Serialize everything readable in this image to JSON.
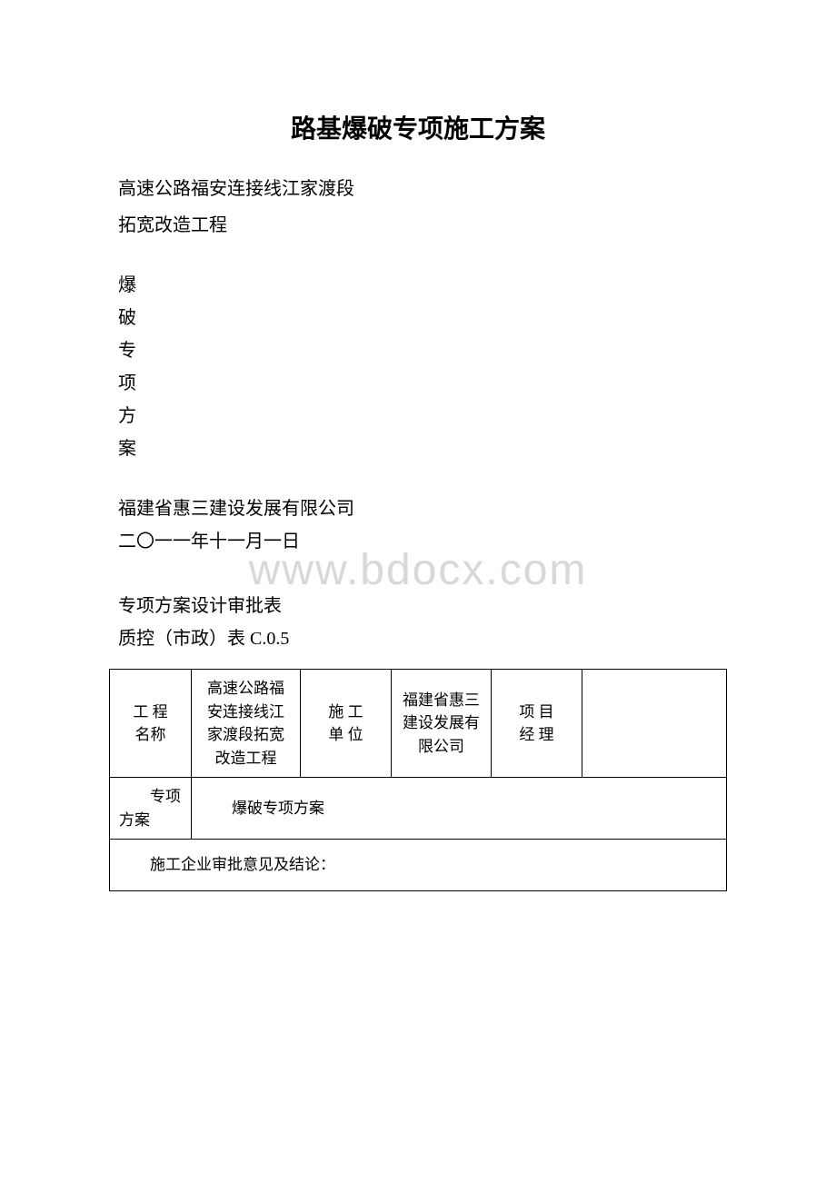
{
  "title": "路基爆破专项施工方案",
  "subtitle1": "高速公路福安连接线江家渡段",
  "subtitle2": "拓宽改造工程",
  "vertical_chars": [
    "爆",
    "破",
    "专",
    "项",
    "方",
    "案"
  ],
  "company": "福建省惠三建设发展有限公司",
  "date": "二〇一一年十一月一日",
  "section_title": "专项方案设计审批表",
  "form_number": "质控（市政）表 C.0.5",
  "watermark": "www.bdocx.com",
  "table": {
    "row1": {
      "label1_line1": "工 程",
      "label1_line2": "名称",
      "value1": "高速公路福安连接线江家渡段拓宽改造工程",
      "label2_line1": "施 工",
      "label2_line2": "单 位",
      "value2": "福建省惠三建设发展有限公司",
      "label3_line1": "项 目",
      "label3_line2": "经 理",
      "value3": ""
    },
    "row2": {
      "label": "专项方案",
      "value": "爆破专项方案"
    },
    "row3": {
      "text": "施工企业审批意见及结论："
    }
  }
}
